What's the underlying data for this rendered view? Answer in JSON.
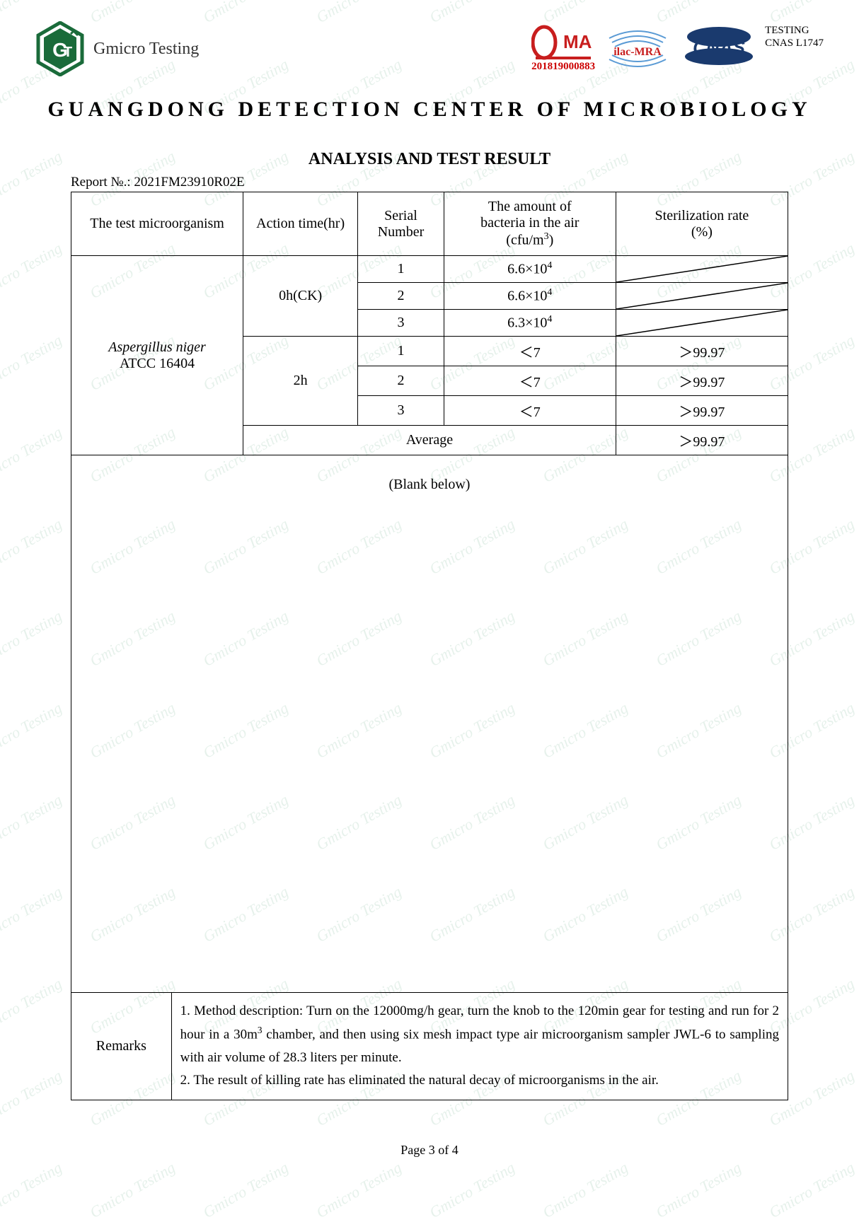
{
  "watermark_text": "Gmicro Testing",
  "header": {
    "brand_name": "Gmicro Testing",
    "cma_number": "201819000883",
    "ilac_text": "ilac-MRA",
    "cnas_text": "CNAS",
    "side_line1": "TESTING",
    "side_line2": "CNAS L1747"
  },
  "titles": {
    "main": "GUANGDONG   DETECTION   CENTER   OF   MICROBIOLOGY",
    "sub": "ANALYSIS AND TEST RESULT",
    "report_no_label": "Report №.: ",
    "report_no_value": "2021FM23910R02E"
  },
  "table": {
    "headers": {
      "organism": "The test microorganism",
      "action_time": "Action time(hr)",
      "serial": "Serial Number",
      "amount_l1": "The amount of",
      "amount_l2": "bacteria in the air",
      "amount_l3": "(cfu/m",
      "amount_l3_sup": "3",
      "amount_l3_end": ")",
      "rate_l1": "Sterilization rate",
      "rate_l2": "(%)"
    },
    "organism_l1": "Aspergillus niger",
    "organism_l2": "ATCC 16404",
    "time_0": "0h(CK)",
    "time_2": "2h",
    "rows_0h": [
      {
        "serial": "1",
        "amount_base": "6.6×10",
        "amount_exp": "4"
      },
      {
        "serial": "2",
        "amount_base": "6.6×10",
        "amount_exp": "4"
      },
      {
        "serial": "3",
        "amount_base": "6.3×10",
        "amount_exp": "4"
      }
    ],
    "rows_2h": [
      {
        "serial": "1",
        "amount": "＜7",
        "rate": "＞99.97"
      },
      {
        "serial": "2",
        "amount": "＜7",
        "rate": "＞99.97"
      },
      {
        "serial": "3",
        "amount": "＜7",
        "rate": "＞99.97"
      }
    ],
    "average_label": "Average",
    "average_rate": "＞99.97",
    "blank_text": "(Blank below)"
  },
  "remarks": {
    "label": "Remarks",
    "line1_a": "1. Method description: Turn on the 12000mg/h gear, turn the knob to the 120min gear for testing and run for 2 hour in a 30m",
    "line1_sup": "3",
    "line1_b": " chamber, and then using six mesh impact type air microorganism sampler JWL-6 to sampling with air volume of 28.3 liters per minute.",
    "line2": "2. The result of killing rate has eliminated the natural decay of microorganisms in the air."
  },
  "footer": {
    "page": "Page 3 of 4"
  },
  "colors": {
    "logo_green": "#1a6b3a",
    "cma_red": "#c81e1e",
    "ilac_blue": "#5b9bd5",
    "cnas_navy": "#1a3a6e"
  }
}
